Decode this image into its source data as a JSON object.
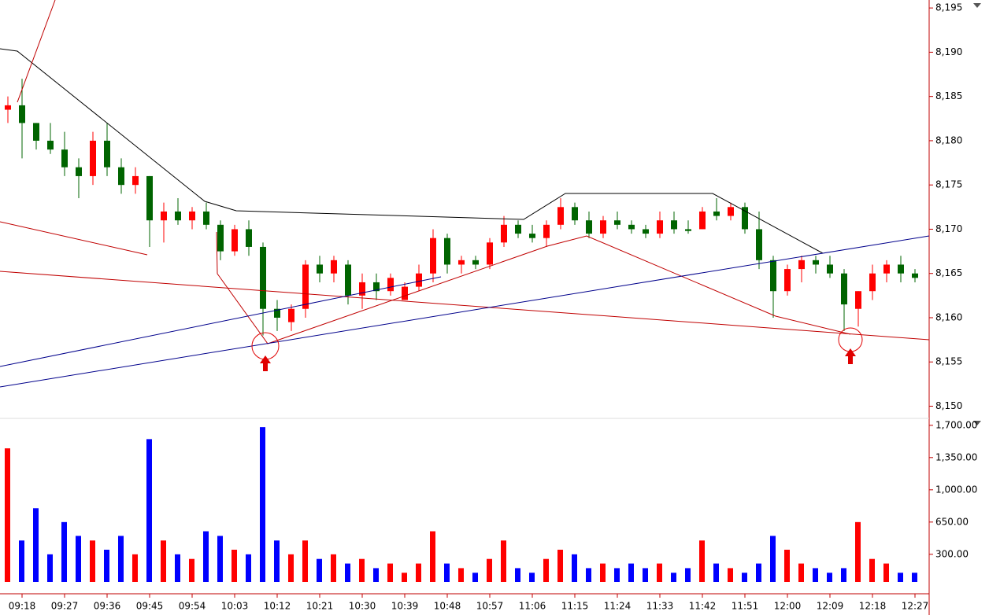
{
  "chart_data": {
    "type": "candlestick",
    "categories": [
      null,
      "09:18",
      null,
      null,
      "09:27",
      null,
      null,
      "09:36",
      null,
      null,
      "09:45",
      null,
      null,
      "09:54",
      null,
      null,
      "10:03",
      null,
      null,
      "10:12",
      null,
      null,
      "10:21",
      null,
      null,
      "10:30",
      null,
      null,
      "10:39",
      null,
      null,
      "10:48",
      null,
      null,
      "10:57",
      null,
      null,
      "11:06",
      null,
      null,
      "11:15",
      null,
      null,
      "11:24",
      null,
      null,
      "11:33",
      null,
      null,
      "11:42",
      null,
      null,
      "11:51",
      null,
      null,
      "12:00",
      null,
      null,
      "12:09",
      null,
      null,
      "12:18",
      null,
      null,
      "12:27"
    ],
    "open": [
      8183.5,
      8184,
      8182,
      8180,
      8179,
      8177,
      8176,
      8180,
      8177,
      8175,
      8176,
      8171,
      8172,
      8171,
      8172,
      8170.5,
      8167.5,
      8170,
      8168,
      8161,
      8159.5,
      8161,
      8166,
      8165,
      8166,
      8162.5,
      8164,
      8163,
      8162,
      8163.5,
      8165,
      8169,
      8166,
      8166.5,
      8166,
      8168.5,
      8170.5,
      8169.5,
      8169,
      8170.5,
      8172.5,
      8171,
      8169.5,
      8171,
      8170.5,
      8170,
      8169.5,
      8171,
      8170,
      8170,
      8172,
      8171.5,
      8172.5,
      8170,
      8166.5,
      8163,
      8165.5,
      8166.5,
      8166,
      8165,
      8161,
      8163,
      8165,
      8166,
      8165
    ],
    "high": [
      8185,
      8187,
      8182,
      8182,
      8181,
      8178,
      8181,
      8182,
      8178,
      8177,
      8176,
      8173,
      8173.5,
      8172.5,
      8173,
      8171,
      8170.5,
      8171,
      8168.5,
      8162,
      8161.5,
      8166.5,
      8167,
      8167,
      8166.5,
      8165,
      8165,
      8165,
      8164,
      8166,
      8170,
      8169.5,
      8167,
      8167,
      8169,
      8171.5,
      8171,
      8170.5,
      8171,
      8173.5,
      8173,
      8172,
      8171.5,
      8172,
      8171,
      8170.5,
      8172,
      8172,
      8171,
      8172.5,
      8173.5,
      8173,
      8173,
      8172,
      8167,
      8166,
      8167,
      8167,
      8167,
      8165.5,
      8163,
      8166,
      8166.5,
      8167,
      8165.5
    ],
    "low": [
      8182,
      8178,
      8179,
      8178.5,
      8176,
      8173.5,
      8175,
      8176,
      8174,
      8174,
      8168,
      8168.5,
      8170.5,
      8170,
      8170,
      8166.5,
      8167,
      8167,
      8158,
      8158.5,
      8158.5,
      8160,
      8164,
      8164,
      8161.5,
      8161,
      8162,
      8162.5,
      8162,
      8163,
      8164,
      8165,
      8165,
      8165.5,
      8165.5,
      8168,
      8169,
      8168.5,
      8168,
      8170,
      8170.5,
      8169,
      8169,
      8170,
      8169.5,
      8169,
      8169,
      8169.5,
      8169.5,
      8170,
      8171,
      8171,
      8169.5,
      8165.5,
      8160,
      8162.5,
      8164,
      8165,
      8164.5,
      8158.5,
      8159,
      8162,
      8164,
      8164,
      8164
    ],
    "close": [
      8184,
      8182,
      8180,
      8179,
      8177,
      8176,
      8180,
      8177,
      8175,
      8176,
      8171,
      8172,
      8171,
      8172,
      8170.5,
      8167.5,
      8170,
      8168,
      8161,
      8160,
      8161,
      8166,
      8165,
      8166.5,
      8162.5,
      8164,
      8163,
      8164.5,
      8163.5,
      8165,
      8169,
      8166,
      8166.5,
      8166,
      8168.5,
      8170.5,
      8169.5,
      8169,
      8170.5,
      8172.5,
      8171,
      8169.5,
      8171,
      8170.5,
      8170,
      8169.5,
      8171,
      8170,
      8169.8,
      8172,
      8171.5,
      8172.5,
      8170,
      8166.5,
      8163,
      8165.5,
      8166.5,
      8166,
      8165,
      8161.5,
      8163,
      8165,
      8166,
      8165,
      8164.5
    ],
    "up_color": "#ff0000",
    "down_color": "#006400",
    "ylim": [
      8148.8,
      8195.9
    ],
    "yticks": [
      {
        "value": 8150,
        "label": "8,150"
      },
      {
        "value": 8155,
        "label": "8,155"
      },
      {
        "value": 8160,
        "label": "8,160"
      },
      {
        "value": 8165,
        "label": "8,165"
      },
      {
        "value": 8170,
        "label": "8,170"
      },
      {
        "value": 8175,
        "label": "8,175"
      },
      {
        "value": 8180,
        "label": "8,180"
      },
      {
        "value": 8185,
        "label": "8,185"
      },
      {
        "value": 8190,
        "label": "8,190"
      },
      {
        "value": 8195,
        "label": "8,195"
      }
    ],
    "volume": [
      1450,
      450,
      800,
      300,
      650,
      500,
      450,
      350,
      500,
      300,
      1550,
      450,
      300,
      250,
      550,
      500,
      350,
      300,
      1680,
      450,
      300,
      450,
      250,
      300,
      200,
      250,
      150,
      200,
      100,
      200,
      550,
      200,
      150,
      100,
      250,
      450,
      150,
      100,
      250,
      350,
      300,
      150,
      200,
      150,
      200,
      150,
      200,
      100,
      150,
      450,
      200,
      150,
      100,
      200,
      500,
      350,
      200,
      150,
      100,
      150,
      650,
      250,
      200,
      100,
      100
    ],
    "volume_up_color": "#ff0000",
    "volume_down_color": "#0000ff",
    "y2lim": [
      0,
      1775
    ],
    "y2ticks": [
      {
        "value": 300,
        "label": "300.00"
      },
      {
        "value": 650,
        "label": "650.00"
      },
      {
        "value": 1000,
        "label": "1,000.00"
      },
      {
        "value": 1350,
        "label": "1,350.00"
      },
      {
        "value": 1700,
        "label": "1,700.00"
      }
    ]
  }
}
